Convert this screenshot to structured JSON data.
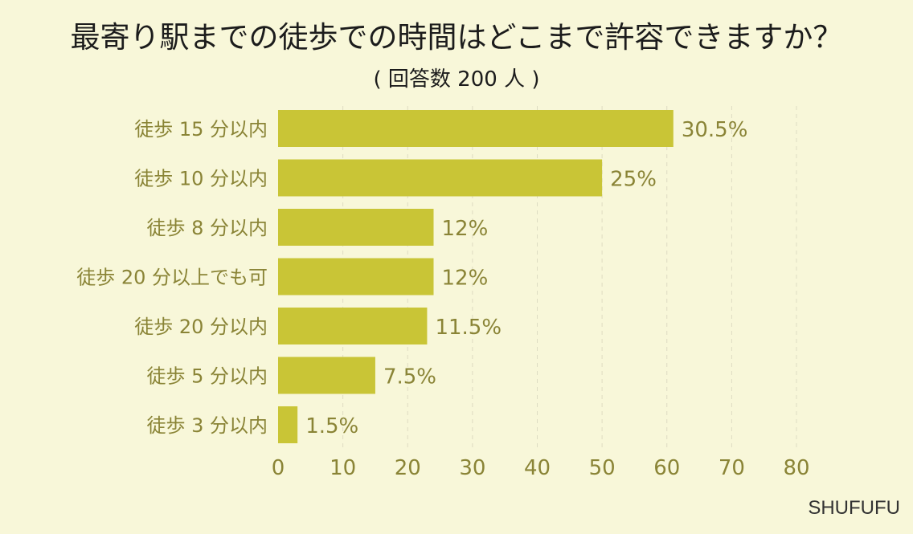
{
  "chart_data": {
    "type": "bar",
    "orientation": "horizontal",
    "title": "最寄り駅までの徒歩での時間はどこまで許容できますか？",
    "subtitle": "( 回答数 200 人 )",
    "categories": [
      "徒歩 15 分以内",
      "徒歩 10 分以内",
      "徒歩 8 分以内",
      "徒歩 20 分以上でも可",
      "徒歩 20 分以内",
      "徒歩 5 分以内",
      "徒歩 3 分以内"
    ],
    "values": [
      30.5,
      25,
      12,
      12,
      11.5,
      7.5,
      1.5
    ],
    "value_labels": [
      "30.5%",
      "25%",
      "12%",
      "12%",
      "11.5%",
      "7.5%",
      "1.5%"
    ],
    "plotted_scale": 2,
    "xlim": [
      0,
      80
    ],
    "xticks": [
      0,
      10,
      20,
      30,
      40,
      50,
      60,
      70,
      80
    ],
    "grid": true,
    "bar_color": "#c9c536",
    "label_color": "#8a8436",
    "background_color": "#f8f7d9"
  },
  "source": "SHUFUFU"
}
